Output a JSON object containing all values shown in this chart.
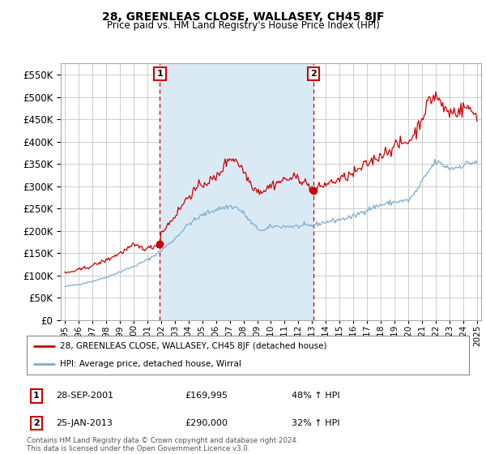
{
  "title": "28, GREENLEAS CLOSE, WALLASEY, CH45 8JF",
  "subtitle": "Price paid vs. HM Land Registry's House Price Index (HPI)",
  "sale1_date": "28-SEP-2001",
  "sale1_price": 169995,
  "sale1_label": "48% ↑ HPI",
  "sale2_date": "25-JAN-2013",
  "sale2_price": 290000,
  "sale2_label": "32% ↑ HPI",
  "red_color": "#cc0000",
  "blue_color": "#7aadcf",
  "shade_color": "#daeaf5",
  "dashed_red": "#cc0000",
  "annotation_box_color": "#cc0000",
  "grid_color": "#cccccc",
  "bg_color": "#ffffff",
  "ylim": [
    0,
    575000
  ],
  "yticks": [
    0,
    50000,
    100000,
    150000,
    200000,
    250000,
    300000,
    350000,
    400000,
    450000,
    500000,
    550000
  ],
  "legend_label_red": "28, GREENLEAS CLOSE, WALLASEY, CH45 8JF (detached house)",
  "legend_label_blue": "HPI: Average price, detached house, Wirral",
  "footer": "Contains HM Land Registry data © Crown copyright and database right 2024.\nThis data is licensed under the Open Government Licence v3.0.",
  "sale1_x": 2001.92,
  "sale2_x": 2013.08,
  "xlim_left": 1994.7,
  "xlim_right": 2025.3,
  "xtick_years": [
    1995,
    1996,
    1997,
    1998,
    1999,
    2000,
    2001,
    2002,
    2003,
    2004,
    2005,
    2006,
    2007,
    2008,
    2009,
    2010,
    2011,
    2012,
    2013,
    2014,
    2015,
    2016,
    2017,
    2018,
    2019,
    2020,
    2021,
    2022,
    2023,
    2024,
    2025
  ]
}
